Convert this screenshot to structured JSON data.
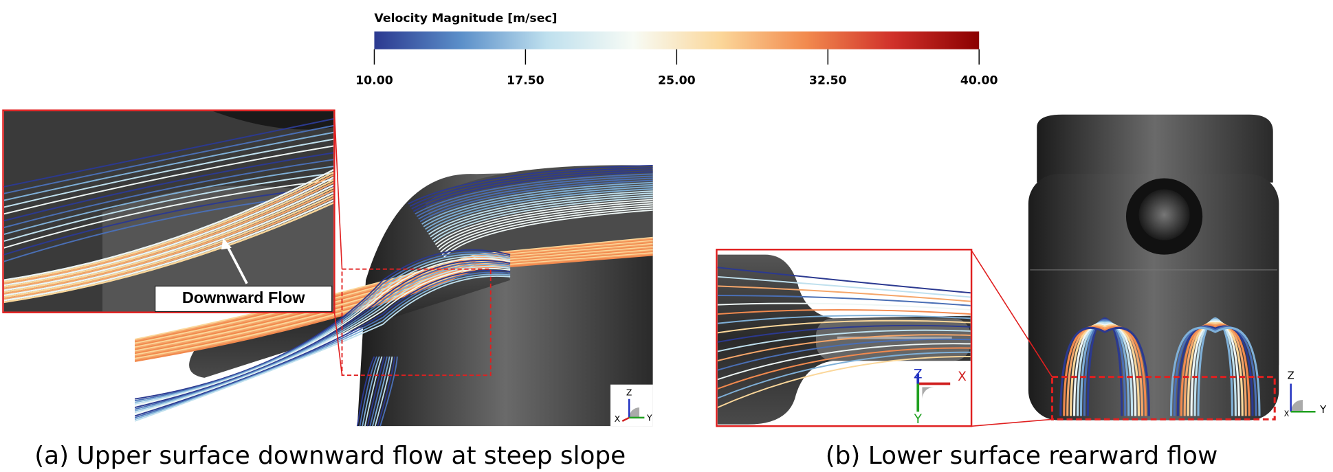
{
  "colorbar": {
    "title": "Velocity Magnitude [m/sec]",
    "lim": [
      10,
      40
    ],
    "ticks": [
      {
        "value": 10,
        "label": "10.00"
      },
      {
        "value": 17.5,
        "label": "17.50"
      },
      {
        "value": 25,
        "label": "25.00"
      },
      {
        "value": 32.5,
        "label": "32.50"
      },
      {
        "value": 40,
        "label": "40.00"
      }
    ],
    "colors": [
      "#2b3990",
      "#5b8fc9",
      "#bfe0ee",
      "#f7fbf5",
      "#fbd79a",
      "#f28a4e",
      "#d0302a",
      "#8b0000"
    ]
  },
  "panels": [
    {
      "caption": "(a) Upper surface downward flow at steep slope",
      "annotation": "Downward Flow",
      "axes": [
        "Z",
        "X",
        "Y"
      ]
    },
    {
      "caption": "(b) Lower surface rearward flow",
      "axes": [
        "Z",
        "X",
        "Y"
      ],
      "inset_axes": [
        "Z",
        "X",
        "Y"
      ]
    }
  ]
}
